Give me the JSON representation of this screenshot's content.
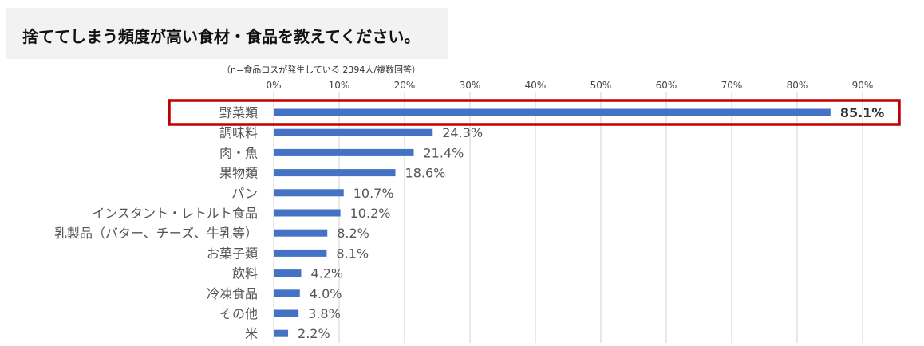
{
  "title": "捨ててしまう頻度が高い食材・食品を教えてください。",
  "chart_data": {
    "type": "bar",
    "orientation": "horizontal",
    "annotation": "（n=食品ロスが発生している 2394人/複数回答）",
    "xlim": [
      0,
      90
    ],
    "x_ticks": [
      "0%",
      "10%",
      "20%",
      "30%",
      "40%",
      "50%",
      "60%",
      "70%",
      "80%",
      "90%"
    ],
    "grid": true,
    "categories": [
      "野菜類",
      "調味料",
      "肉・魚",
      "果物類",
      "パン",
      "インスタント・レトルト食品",
      "乳製品（バター、チーズ、牛乳等）",
      "お菓子類",
      "飲料",
      "冷凍食品",
      "その他",
      "米"
    ],
    "values": [
      85.1,
      24.3,
      21.4,
      18.6,
      10.7,
      10.2,
      8.2,
      8.1,
      4.2,
      4.0,
      3.8,
      2.2
    ],
    "value_labels": [
      "85.1%",
      "24.3%",
      "21.4%",
      "18.6%",
      "10.7%",
      "10.2%",
      "8.2%",
      "8.1%",
      "4.2%",
      "4.0%",
      "3.8%",
      "2.2%"
    ],
    "highlight_index": 0,
    "bar_color": "#4472c4",
    "highlight_color": "#c00000",
    "grid_color": "#d9d9d9"
  }
}
